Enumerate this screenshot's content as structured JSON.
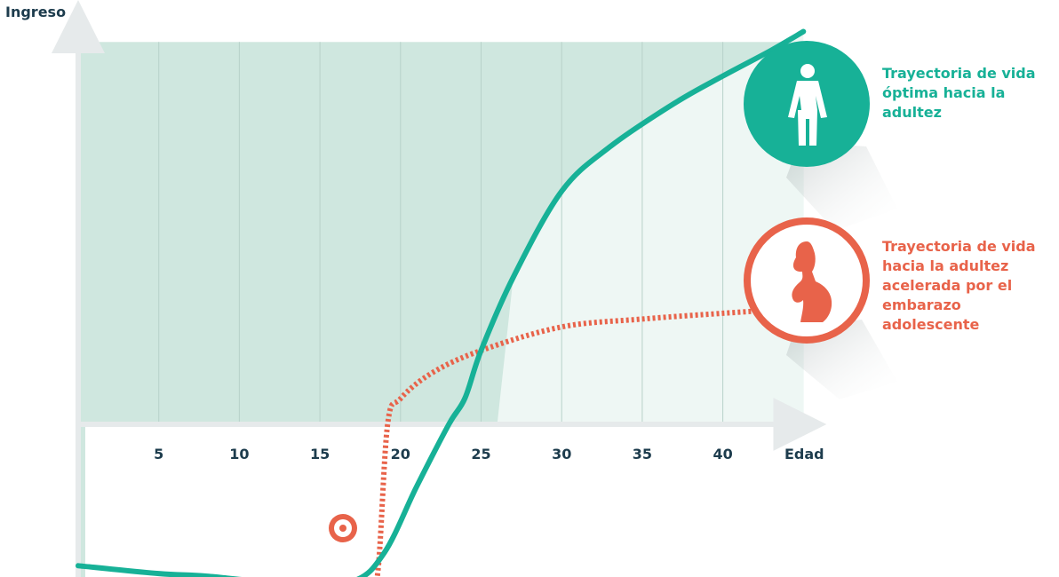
{
  "chart_data": {
    "type": "line",
    "ylabel": "Ingreso",
    "xlabel": "Edad",
    "x_ticks": [
      5,
      10,
      15,
      20,
      25,
      30,
      35,
      40
    ],
    "xlim": [
      0,
      45
    ],
    "series": [
      {
        "name": "Trayectoria de vida óptima hacia la adultez",
        "color": "#17b197",
        "x": [
          0,
          5,
          8,
          13,
          17,
          19,
          21,
          23,
          24,
          25,
          27,
          30,
          33,
          37,
          40,
          43,
          45
        ],
        "y": [
          -27,
          -28.5,
          -29,
          -30.4,
          -30,
          -24.5,
          -11.9,
          0,
          5,
          14.1,
          28.1,
          44.5,
          53,
          61.3,
          66.5,
          71.4,
          75
        ]
      },
      {
        "name": "Trayectoria de vida hacia la adultez acelerada por el embarazo adolescente",
        "color": "#e8634a",
        "x": [
          17,
          18,
          18.6,
          19.2,
          20,
          22,
          25,
          30,
          35,
          40,
          44
        ],
        "y": [
          -30,
          -33.6,
          -28,
          0,
          4.9,
          9.9,
          14.1,
          18.6,
          20.1,
          21.2,
          22
        ]
      }
    ]
  },
  "legend": {
    "optimal": "Trayectoria de vida óptima hacia la adultez",
    "accelerated": "Trayectoria de vida hacia la adultez acelerada por el embarazo adolescente"
  },
  "icons": {
    "optimal": "woman-icon",
    "accelerated": "pregnant-woman-icon",
    "marker": "target-marker-icon"
  },
  "colors": {
    "teal": "#17b197",
    "coral": "#e8634a",
    "band_fill": "#cfe7df",
    "band_light": "#eef7f4",
    "axis": "#e6eaeb",
    "tick_text": "#1d3c4d"
  }
}
